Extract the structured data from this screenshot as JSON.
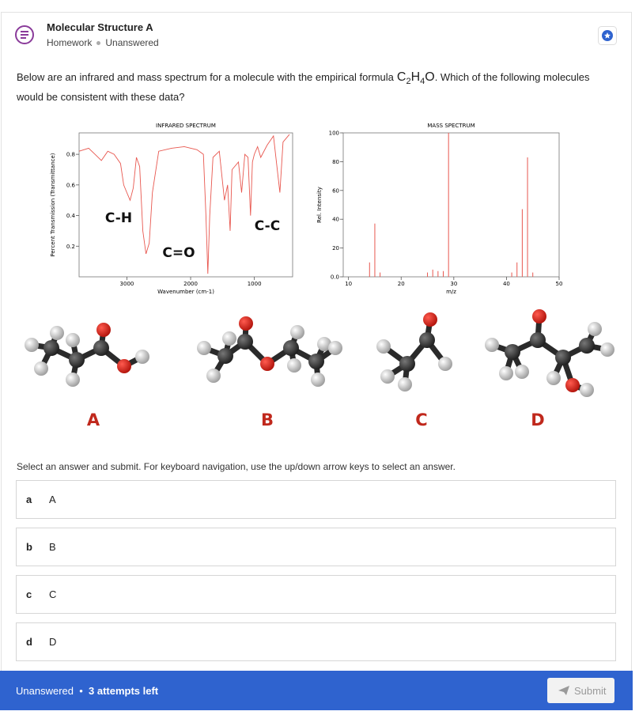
{
  "header": {
    "title": "Molecular Structure A",
    "category": "Homework",
    "status": "Unanswered"
  },
  "question": {
    "before": "Below are an infrared and mass spectrum for a molecule with the empirical formula",
    "formula": [
      "C",
      "2",
      "H",
      "4",
      "O"
    ],
    "after": ". Which of the following molecules would be consistent with these data?"
  },
  "chart_data": [
    {
      "type": "line",
      "title": "INFRARED SPECTRUM",
      "x_label": "Wavenumber (cm-1)",
      "y_label": "Percent Transmission (Transmittance)",
      "x": [
        3750,
        3600,
        3500,
        3400,
        3300,
        3200,
        3100,
        3050,
        3000,
        2950,
        2900,
        2850,
        2800,
        2750,
        2700,
        2650,
        2600,
        2500,
        2300,
        2100,
        1900,
        1800,
        1760,
        1730,
        1700,
        1650,
        1550,
        1470,
        1420,
        1380,
        1350,
        1250,
        1200,
        1150,
        1100,
        1060,
        1030,
        1000,
        950,
        900,
        800,
        700,
        600,
        550,
        450
      ],
      "values": [
        0.82,
        0.84,
        0.8,
        0.76,
        0.82,
        0.8,
        0.74,
        0.6,
        0.55,
        0.5,
        0.58,
        0.78,
        0.72,
        0.3,
        0.15,
        0.22,
        0.55,
        0.82,
        0.84,
        0.85,
        0.83,
        0.8,
        0.4,
        0.02,
        0.4,
        0.78,
        0.82,
        0.5,
        0.6,
        0.3,
        0.7,
        0.75,
        0.55,
        0.8,
        0.78,
        0.4,
        0.75,
        0.8,
        0.85,
        0.78,
        0.86,
        0.92,
        0.55,
        0.88,
        0.93
      ],
      "color": "#e8574f",
      "xlim": [
        3750,
        400
      ],
      "ylim": [
        0,
        0.94
      ],
      "xticks": [
        3000,
        2000,
        1000
      ],
      "yticks": [
        0.2,
        0.4,
        0.6,
        0.8
      ],
      "annotations": [
        "C-H",
        "C=O",
        "C-C"
      ]
    },
    {
      "type": "stem",
      "title": "MASS SPECTRUM",
      "x_label": "m/z",
      "y_label": "Rel. Intensity",
      "x": [
        14,
        15,
        16,
        25,
        26,
        27,
        28,
        29,
        41,
        42,
        43,
        44,
        45
      ],
      "values": [
        10,
        37,
        3,
        3,
        5,
        4,
        4,
        100,
        3,
        10,
        47,
        83,
        3
      ],
      "color": "#e8574f",
      "xlim": [
        9,
        50
      ],
      "ylim": [
        0,
        100
      ],
      "xticks": [
        10,
        20,
        30,
        40,
        50
      ],
      "yticks": [
        {
          "value": 0,
          "label": "0.0"
        },
        20,
        40,
        60,
        80,
        100
      ]
    }
  ],
  "molecule_labels": [
    "A",
    "B",
    "C",
    "D"
  ],
  "instructions": "Select an answer and submit. For keyboard navigation, use the up/down arrow keys to select an answer.",
  "options": [
    {
      "key": "a",
      "label": "A"
    },
    {
      "key": "b",
      "label": "B"
    },
    {
      "key": "c",
      "label": "C"
    },
    {
      "key": "d",
      "label": "D"
    }
  ],
  "footer": {
    "status": "Unanswered",
    "attempts": "3 attempts left",
    "submit": "Submit"
  }
}
